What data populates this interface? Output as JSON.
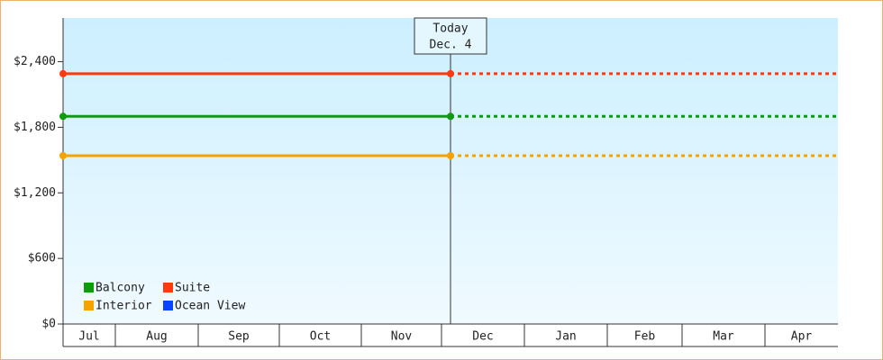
{
  "chart_data": {
    "type": "line",
    "categories": [
      "Jul",
      "Aug",
      "Sep",
      "Oct",
      "Nov",
      "Dec",
      "Jan",
      "Feb",
      "Mar",
      "Apr"
    ],
    "today": {
      "line1": "Today",
      "line2": "Dec. 4"
    },
    "series": [
      {
        "name": "Balcony",
        "color": "#109a10",
        "value": 1900
      },
      {
        "name": "Suite",
        "color": "#ff3a10",
        "value": 2290
      },
      {
        "name": "Interior",
        "color": "#f5a300",
        "value": 1540
      },
      {
        "name": "Ocean View",
        "color": "#0a44ff",
        "value": null
      }
    ],
    "ylim": [
      0,
      2800
    ],
    "yticks": [
      {
        "value": 0,
        "label": "$0"
      },
      {
        "value": 600,
        "label": "$600"
      },
      {
        "value": 1200,
        "label": "$1,200"
      },
      {
        "value": 1800,
        "label": "$1,800"
      },
      {
        "value": 2400,
        "label": "$2,400"
      }
    ],
    "legend": "lower left"
  }
}
